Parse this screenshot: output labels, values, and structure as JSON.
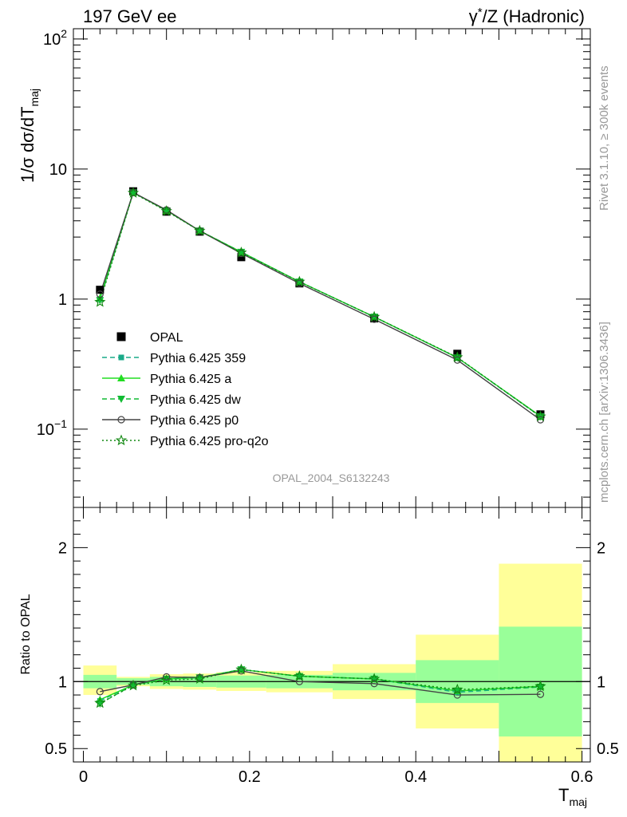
{
  "header": {
    "left": "197 GeV ee",
    "right_prefix": "γ",
    "right_sup": "*",
    "right_suffix": "/Z (Hadronic)"
  },
  "side_labels": {
    "rivet": "Rivet 3.1.10, ≥ 300k events",
    "mcplots": "mcplots.cern.ch [arXiv:1306.3436]"
  },
  "watermark": "OPAL_2004_S6132243",
  "chart_data": [
    {
      "type": "line",
      "panel": "main",
      "yscale": "log",
      "ylim": [
        0.025,
        120
      ],
      "xlim": [
        -0.012,
        0.61
      ],
      "ylabel": {
        "main": "1/σ dσ/dT",
        "sub": "maj"
      },
      "yticks": [
        {
          "value": 100,
          "base": "10",
          "exp": "2"
        },
        {
          "value": 10,
          "base": "10",
          "exp": ""
        },
        {
          "value": 1,
          "base": "1",
          "exp": ""
        },
        {
          "value": 0.1,
          "base": "10",
          "exp": "−1"
        }
      ],
      "x_bins": [
        [
          0.0,
          0.04
        ],
        [
          0.04,
          0.08
        ],
        [
          0.08,
          0.12
        ],
        [
          0.12,
          0.16
        ],
        [
          0.16,
          0.22
        ],
        [
          0.22,
          0.3
        ],
        [
          0.3,
          0.4
        ],
        [
          0.4,
          0.5
        ],
        [
          0.5,
          0.6
        ]
      ],
      "x": [
        0.02,
        0.06,
        0.1,
        0.14,
        0.19,
        0.26,
        0.35,
        0.45,
        0.55
      ],
      "series": [
        {
          "name": "OPAL",
          "style": "data",
          "color": "#000000",
          "values": [
            1.18,
            6.75,
            4.7,
            3.3,
            2.1,
            1.32,
            0.71,
            0.38,
            0.13
          ]
        },
        {
          "name": "Pythia 6.425 359",
          "style": "dash-square",
          "color": "#1aaa88",
          "values": [
            1.0,
            6.6,
            4.8,
            3.35,
            2.3,
            1.36,
            0.73,
            0.355,
            0.125
          ]
        },
        {
          "name": "Pythia 6.425 a",
          "style": "solid-triangle",
          "color": "#22dd22",
          "values": [
            1.02,
            6.6,
            4.8,
            3.35,
            2.3,
            1.36,
            0.73,
            0.355,
            0.126
          ]
        },
        {
          "name": "Pythia 6.425 dw",
          "style": "dash-triangle-down",
          "color": "#11bb33",
          "values": [
            0.98,
            6.6,
            4.8,
            3.35,
            2.3,
            1.36,
            0.73,
            0.355,
            0.125
          ]
        },
        {
          "name": "Pythia 6.425 p0",
          "style": "solid-circle",
          "color": "#444444",
          "values": [
            1.09,
            6.6,
            4.85,
            3.35,
            2.25,
            1.32,
            0.7,
            0.34,
            0.118
          ]
        },
        {
          "name": "Pythia 6.425 pro-q2o",
          "style": "dot-star",
          "color": "#118811",
          "values": [
            0.95,
            6.55,
            4.75,
            3.35,
            2.28,
            1.36,
            0.73,
            0.357,
            0.125
          ]
        }
      ]
    },
    {
      "type": "line",
      "panel": "ratio",
      "ylim": [
        0.4,
        2.3
      ],
      "ylabel": "Ratio to OPAL",
      "xlabel": {
        "main": "T",
        "sub": "maj"
      },
      "yticks": [
        {
          "value": 0.5,
          "label": "0.5"
        },
        {
          "value": 1,
          "label": "1"
        },
        {
          "value": 2,
          "label": "2"
        }
      ],
      "xticks": [
        {
          "value": 0,
          "label": "0"
        },
        {
          "value": 0.2,
          "label": "0.2"
        },
        {
          "value": 0.4,
          "label": "0.4"
        },
        {
          "value": 0.6,
          "label": "0.6"
        }
      ],
      "band_colors": {
        "outer": "#ffff99",
        "inner": "#99ff99"
      },
      "bands": [
        {
          "x0": 0.0,
          "x1": 0.04,
          "outer": [
            0.9,
            1.12
          ],
          "inner": [
            0.95,
            1.05
          ]
        },
        {
          "x0": 0.04,
          "x1": 0.08,
          "outer": [
            0.965,
            1.035
          ],
          "inner": [
            0.975,
            1.025
          ]
        },
        {
          "x0": 0.08,
          "x1": 0.12,
          "outer": [
            0.945,
            1.055
          ],
          "inner": [
            0.965,
            1.035
          ]
        },
        {
          "x0": 0.12,
          "x1": 0.16,
          "outer": [
            0.94,
            1.06
          ],
          "inner": [
            0.96,
            1.04
          ]
        },
        {
          "x0": 0.16,
          "x1": 0.22,
          "outer": [
            0.93,
            1.07
          ],
          "inner": [
            0.955,
            1.045
          ]
        },
        {
          "x0": 0.22,
          "x1": 0.3,
          "outer": [
            0.92,
            1.08
          ],
          "inner": [
            0.95,
            1.05
          ]
        },
        {
          "x0": 0.3,
          "x1": 0.4,
          "outer": [
            0.87,
            1.13
          ],
          "inner": [
            0.935,
            1.065
          ]
        },
        {
          "x0": 0.4,
          "x1": 0.5,
          "outer": [
            0.65,
            1.35
          ],
          "inner": [
            0.84,
            1.16
          ]
        },
        {
          "x0": 0.5,
          "x1": 0.6,
          "outer": [
            0.4,
            1.88
          ],
          "inner": [
            0.59,
            1.41
          ]
        }
      ],
      "x": [
        0.02,
        0.06,
        0.1,
        0.14,
        0.19,
        0.26,
        0.35,
        0.45,
        0.55
      ],
      "series": [
        {
          "name": "Pythia 6.425 359",
          "style": "dash-square",
          "color": "#1aaa88",
          "values": [
            0.855,
            0.975,
            1.02,
            1.03,
            1.09,
            1.04,
            1.02,
            0.92,
            0.96
          ]
        },
        {
          "name": "Pythia 6.425 a",
          "style": "solid-triangle",
          "color": "#22dd22",
          "values": [
            0.865,
            0.975,
            1.02,
            1.03,
            1.09,
            1.04,
            1.02,
            0.93,
            0.965
          ]
        },
        {
          "name": "Pythia 6.425 dw",
          "style": "dash-triangle-down",
          "color": "#11bb33",
          "values": [
            0.835,
            0.975,
            1.02,
            1.03,
            1.09,
            1.04,
            1.02,
            0.93,
            0.96
          ]
        },
        {
          "name": "Pythia 6.425 p0",
          "style": "solid-circle",
          "color": "#444444",
          "values": [
            0.925,
            0.975,
            1.035,
            1.03,
            1.08,
            1.0,
            0.985,
            0.9,
            0.905
          ]
        },
        {
          "name": "Pythia 6.425 pro-q2o",
          "style": "dot-star",
          "color": "#118811",
          "values": [
            0.84,
            0.97,
            1.01,
            1.02,
            1.09,
            1.04,
            1.02,
            0.94,
            0.965
          ]
        }
      ]
    }
  ]
}
